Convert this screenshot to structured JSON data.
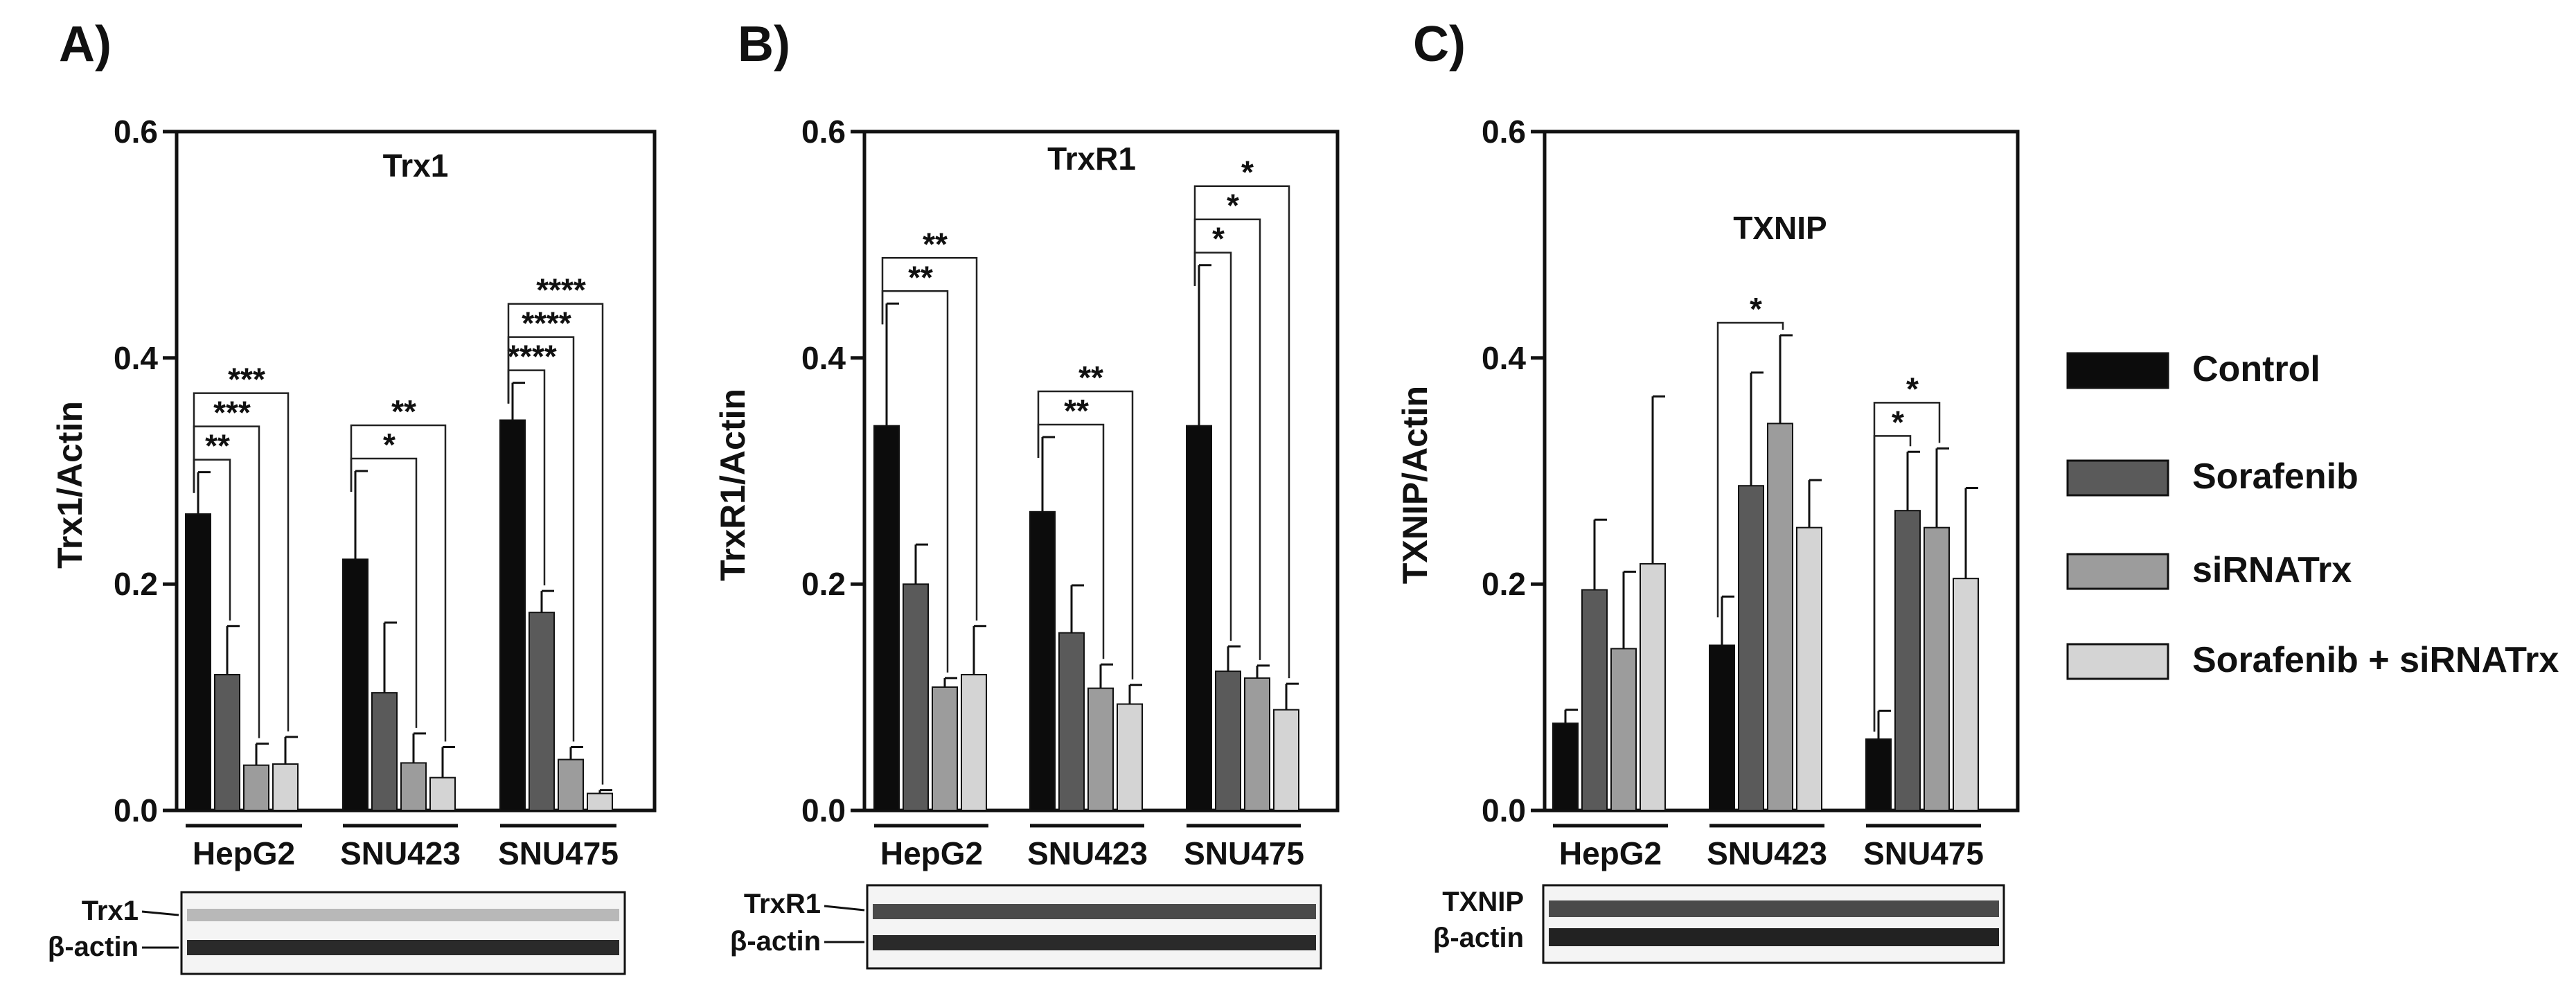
{
  "chart_data": [
    {
      "type": "bar",
      "panel_label": "A)",
      "title": "Trx1",
      "ylabel": "Trx1/Actin",
      "xlabel": "",
      "ylim": [
        0,
        0.6
      ],
      "yticks": [
        "0.0",
        "0.2",
        "0.4",
        "0.6"
      ],
      "categories": [
        "HepG2",
        "SNU423",
        "SNU475"
      ],
      "series": [
        {
          "name": "Control",
          "values": [
            0.262,
            0.222,
            0.345
          ],
          "errors": [
            0.037,
            0.078,
            0.033
          ]
        },
        {
          "name": "Sorafenib",
          "values": [
            0.12,
            0.104,
            0.175
          ],
          "errors": [
            0.043,
            0.062,
            0.019
          ]
        },
        {
          "name": "siRNATrx",
          "values": [
            0.04,
            0.042,
            0.045
          ],
          "errors": [
            0.019,
            0.026,
            0.011
          ]
        },
        {
          "name": "Sorafenib + siRNATrx",
          "values": [
            0.041,
            0.029,
            0.015
          ],
          "errors": [
            0.024,
            0.027,
            0.003
          ]
        }
      ],
      "significance": [
        {
          "group": 0,
          "compare": 1,
          "label": "**"
        },
        {
          "group": 0,
          "compare": 2,
          "label": "***"
        },
        {
          "group": 0,
          "compare": 3,
          "label": "***"
        },
        {
          "group": 1,
          "compare": 2,
          "label": "*"
        },
        {
          "group": 1,
          "compare": 3,
          "label": "**"
        },
        {
          "group": 2,
          "compare": 1,
          "label": "****"
        },
        {
          "group": 2,
          "compare": 2,
          "label": "****"
        },
        {
          "group": 2,
          "compare": 3,
          "label": "****"
        }
      ],
      "blot_labels": [
        "Trx1",
        "β-actin"
      ]
    },
    {
      "type": "bar",
      "panel_label": "B)",
      "title": "TrxR1",
      "ylabel": "TrxR1/Actin",
      "xlabel": "",
      "ylim": [
        0,
        0.6
      ],
      "yticks": [
        "0.0",
        "0.2",
        "0.4",
        "0.6"
      ],
      "categories": [
        "HepG2",
        "SNU423",
        "SNU475"
      ],
      "series": [
        {
          "name": "Control",
          "values": [
            0.34,
            0.264,
            0.34
          ],
          "errors": [
            0.108,
            0.066,
            0.142
          ]
        },
        {
          "name": "Sorafenib",
          "values": [
            0.2,
            0.157,
            0.123
          ],
          "errors": [
            0.035,
            0.042,
            0.022
          ]
        },
        {
          "name": "siRNATrx",
          "values": [
            0.109,
            0.108,
            0.117
          ],
          "errors": [
            0.008,
            0.021,
            0.011
          ]
        },
        {
          "name": "Sorafenib + siRNATrx",
          "values": [
            0.12,
            0.094,
            0.089
          ],
          "errors": [
            0.043,
            0.017,
            0.023
          ]
        }
      ],
      "significance": [
        {
          "group": 0,
          "compare": 2,
          "label": "**"
        },
        {
          "group": 0,
          "compare": 3,
          "label": "**"
        },
        {
          "group": 1,
          "compare": 2,
          "label": "**"
        },
        {
          "group": 1,
          "compare": 3,
          "label": "**"
        },
        {
          "group": 2,
          "compare": 1,
          "label": "*"
        },
        {
          "group": 2,
          "compare": 2,
          "label": "*"
        },
        {
          "group": 2,
          "compare": 3,
          "label": "*"
        }
      ],
      "blot_labels": [
        "TrxR1",
        "β-actin"
      ]
    },
    {
      "type": "bar",
      "panel_label": "C)",
      "title": "TXNIP",
      "ylabel": "TXNIP/Actin",
      "xlabel": "",
      "ylim": [
        0,
        0.6
      ],
      "yticks": [
        "0.0",
        "0.2",
        "0.4",
        "0.6"
      ],
      "categories": [
        "HepG2",
        "SNU423",
        "SNU475"
      ],
      "series": [
        {
          "name": "Control",
          "values": [
            0.077,
            0.146,
            0.063
          ],
          "errors": [
            0.012,
            0.043,
            0.025
          ]
        },
        {
          "name": "Sorafenib",
          "values": [
            0.195,
            0.287,
            0.265
          ],
          "errors": [
            0.062,
            0.1,
            0.052
          ]
        },
        {
          "name": "siRNATrx",
          "values": [
            0.143,
            0.342,
            0.25
          ],
          "errors": [
            0.068,
            0.078,
            0.07
          ]
        },
        {
          "name": "Sorafenib + siRNATrx",
          "values": [
            0.218,
            0.25,
            0.205
          ],
          "errors": [
            0.148,
            0.042,
            0.08
          ]
        }
      ],
      "significance": [
        {
          "group": 1,
          "compare": 2,
          "label": "*"
        },
        {
          "group": 2,
          "compare": 1,
          "label": "*"
        },
        {
          "group": 2,
          "compare": 2,
          "label": "*"
        }
      ],
      "blot_labels": [
        "TXNIP",
        "β-actin"
      ]
    }
  ],
  "legend": {
    "entries": [
      "Control",
      "Sorafenib",
      "siRNATrx",
      "Sorafenib + siRNATrx"
    ],
    "colors": [
      "#0c0c0c",
      "#5a5a5a",
      "#9c9c9c",
      "#d4d4d4"
    ],
    "placement": "right"
  }
}
